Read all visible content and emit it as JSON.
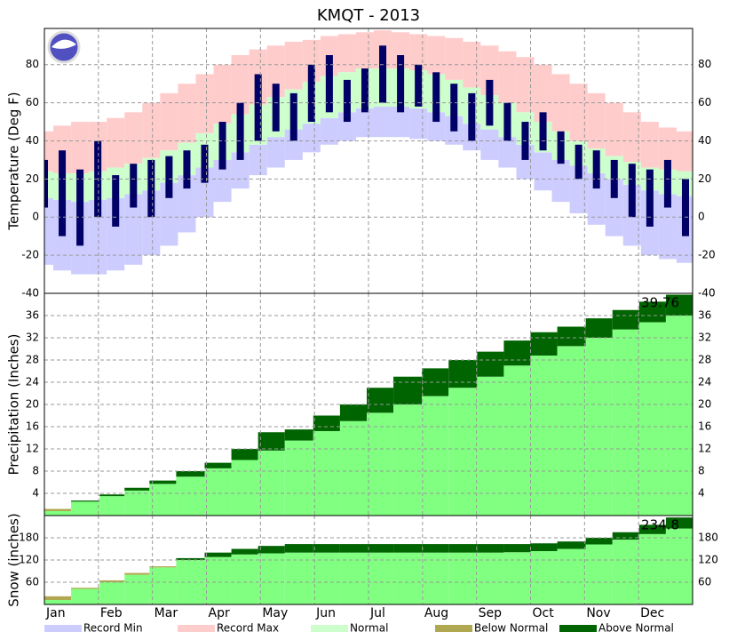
{
  "title": "KMQT - 2013",
  "months": [
    "Jan",
    "Feb",
    "Mar",
    "Apr",
    "May",
    "Jun",
    "Jul",
    "Aug",
    "Sep",
    "Oct",
    "Nov",
    "Dec"
  ],
  "legend": [
    {
      "name": "Record Min",
      "color": "#ccccff"
    },
    {
      "name": "Record Max",
      "color": "#ffcccc"
    },
    {
      "name": "Normal",
      "color": "#ccffcc"
    },
    {
      "name": "Below Normal",
      "color": "#b0a850"
    },
    {
      "name": "Above Normal",
      "color": "#006400"
    }
  ],
  "chart_data": [
    {
      "type": "temperature",
      "ylabel": "Temperature (Deg F)",
      "ylim": [
        -40,
        99
      ],
      "yticks": [
        -40,
        -20,
        0,
        20,
        40,
        60,
        80
      ],
      "line_color": "#000066",
      "x": [
        1,
        11,
        21,
        31,
        41,
        51,
        61,
        71,
        81,
        91,
        101,
        111,
        121,
        131,
        141,
        151,
        161,
        171,
        181,
        191,
        201,
        211,
        221,
        231,
        241,
        251,
        261,
        271,
        281,
        291,
        301,
        311,
        321,
        331,
        341,
        351,
        361
      ],
      "record_max": [
        45,
        48,
        50,
        50,
        52,
        55,
        60,
        65,
        70,
        75,
        80,
        85,
        88,
        90,
        92,
        93,
        95,
        96,
        97,
        98,
        97,
        96,
        95,
        94,
        92,
        90,
        87,
        84,
        80,
        75,
        70,
        65,
        60,
        55,
        50,
        47,
        45
      ],
      "record_min": [
        -25,
        -28,
        -30,
        -30,
        -28,
        -25,
        -20,
        -15,
        -8,
        0,
        8,
        15,
        22,
        26,
        30,
        34,
        38,
        40,
        42,
        42,
        42,
        41,
        40,
        38,
        35,
        30,
        26,
        20,
        14,
        8,
        2,
        -4,
        -10,
        -15,
        -20,
        -22,
        -24
      ],
      "normal_high": [
        24,
        23,
        23,
        24,
        26,
        28,
        31,
        35,
        39,
        44,
        49,
        54,
        59,
        63,
        67,
        71,
        74,
        76,
        78,
        78,
        78,
        77,
        75,
        72,
        68,
        64,
        60,
        55,
        50,
        45,
        40,
        36,
        32,
        29,
        26,
        25,
        24
      ],
      "normal_low": [
        10,
        9,
        8,
        9,
        10,
        12,
        14,
        18,
        22,
        26,
        30,
        34,
        38,
        42,
        46,
        49,
        52,
        55,
        57,
        58,
        58,
        57,
        55,
        53,
        49,
        46,
        42,
        38,
        34,
        30,
        27,
        23,
        20,
        17,
        14,
        12,
        11
      ],
      "high": [
        30,
        35,
        25,
        40,
        22,
        28,
        30,
        32,
        35,
        38,
        50,
        60,
        75,
        70,
        65,
        80,
        85,
        72,
        78,
        90,
        85,
        80,
        76,
        70,
        65,
        72,
        60,
        50,
        55,
        45,
        38,
        35,
        30,
        28,
        25,
        30,
        20
      ],
      "low": [
        5,
        -10,
        -15,
        0,
        -5,
        5,
        0,
        10,
        15,
        18,
        25,
        30,
        40,
        45,
        40,
        50,
        55,
        50,
        55,
        60,
        55,
        58,
        50,
        45,
        40,
        48,
        40,
        30,
        35,
        28,
        20,
        15,
        10,
        0,
        -5,
        5,
        -10
      ]
    },
    {
      "type": "cumulative",
      "ylabel": "Precipitation (Inches)",
      "ylim": [
        0,
        40
      ],
      "yticks": [
        4,
        8,
        12,
        16,
        20,
        24,
        28,
        32,
        36
      ],
      "normal_color": "#80ff80",
      "x": [
        1,
        16,
        32,
        46,
        60,
        75,
        91,
        106,
        121,
        136,
        152,
        167,
        182,
        197,
        213,
        228,
        244,
        259,
        274,
        289,
        305,
        320,
        335,
        350,
        365
      ],
      "normal": [
        0,
        1.2,
        2.5,
        3.5,
        4.5,
        5.7,
        7,
        8.5,
        10,
        11.7,
        13.5,
        15.2,
        17,
        18.5,
        20,
        21.5,
        23,
        25,
        27,
        28.8,
        30.5,
        32,
        33.5,
        34.8,
        36
      ],
      "actual": [
        0,
        0.8,
        2.7,
        3.8,
        5,
        6.3,
        8,
        9.5,
        12,
        15,
        15.5,
        18,
        20,
        23,
        25,
        26.5,
        28,
        29.5,
        31.5,
        33,
        34,
        35.5,
        37,
        38.5,
        39.76
      ]
    },
    {
      "type": "cumulative",
      "ylabel": "Snow (inches)",
      "ylim": [
        0,
        240
      ],
      "yticks": [
        60,
        120,
        180
      ],
      "normal_color": "#80ff80",
      "x": [
        1,
        16,
        32,
        46,
        60,
        75,
        91,
        106,
        121,
        136,
        152,
        167,
        182,
        197,
        213,
        228,
        244,
        259,
        274,
        289,
        305,
        320,
        335,
        350,
        365
      ],
      "normal": [
        0,
        22,
        45,
        65,
        85,
        103,
        120,
        128,
        135,
        138,
        140,
        140,
        140,
        140,
        140,
        140,
        140,
        140,
        141,
        144,
        150,
        162,
        175,
        190,
        205
      ],
      "actual": [
        0,
        12,
        42,
        60,
        80,
        100,
        125,
        140,
        150,
        158,
        163,
        163,
        163,
        163,
        163,
        163,
        163,
        163,
        163,
        165,
        170,
        180,
        195,
        215,
        234.8
      ]
    }
  ]
}
